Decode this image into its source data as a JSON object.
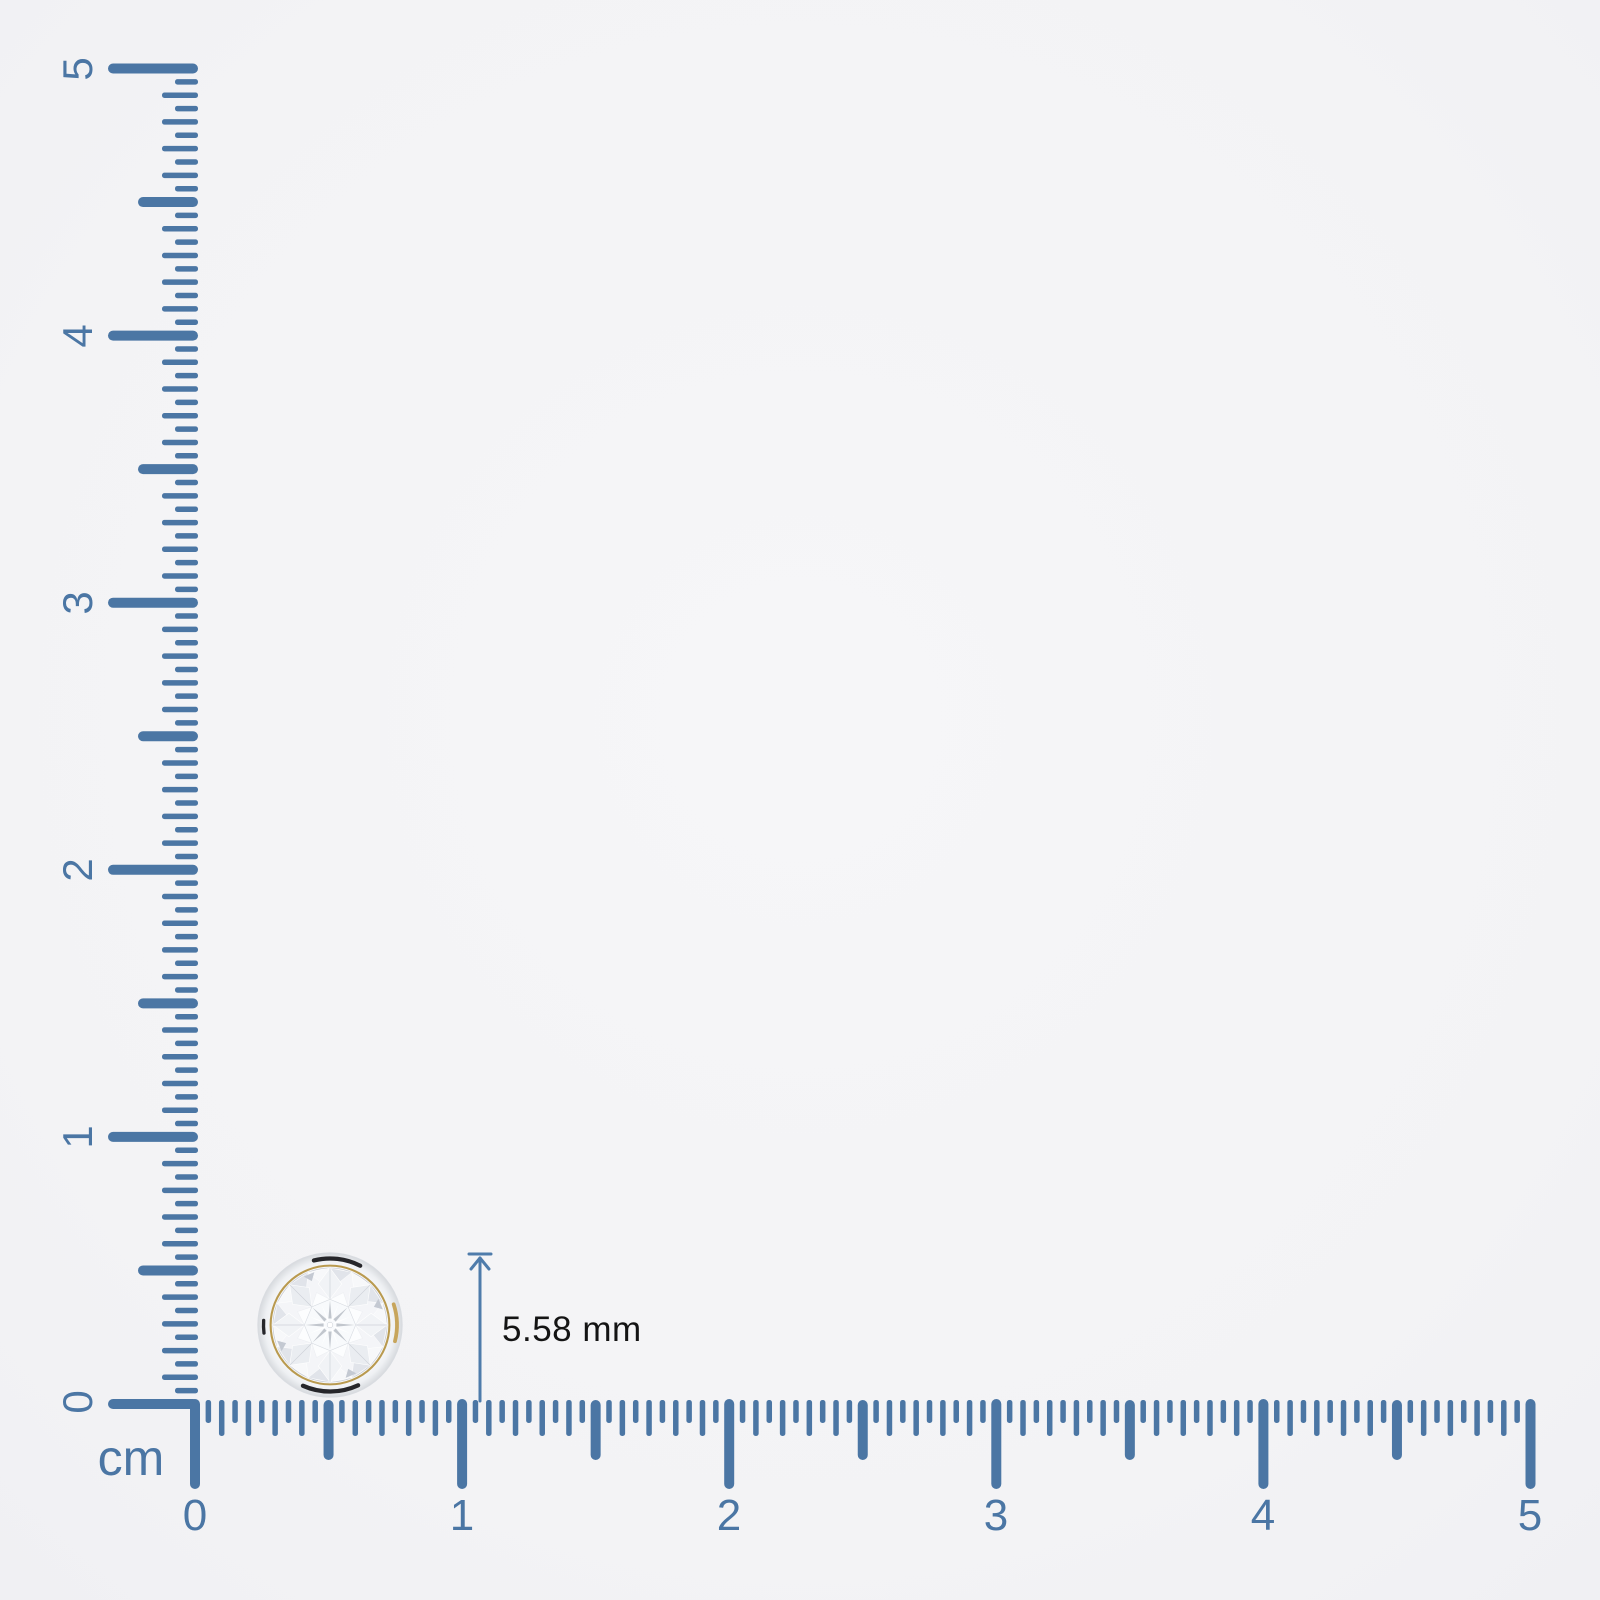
{
  "background_color": "#f3f3f5",
  "ruler": {
    "unit_label": "cm",
    "cm_count": 5,
    "subdivisions_per_cm": 20,
    "tick_color": "#4b76a4",
    "label_color": "#4b76a4",
    "horizontal_labels": [
      "0",
      "1",
      "2",
      "3",
      "4",
      "5"
    ],
    "vertical_labels": [
      "0",
      "1",
      "2",
      "3",
      "4",
      "5"
    ]
  },
  "measurement": {
    "value_label": "5.58 mm",
    "text_color": "#141414",
    "arrow_color": "#4f7cab"
  },
  "item": {
    "icon": "diamond-stud-icon",
    "bezel_color": "#eef0f3",
    "gold_rim_color": "#b99a4f",
    "dark_accent_color": "#26262a",
    "facet_light_color": "#f4f5f8"
  }
}
